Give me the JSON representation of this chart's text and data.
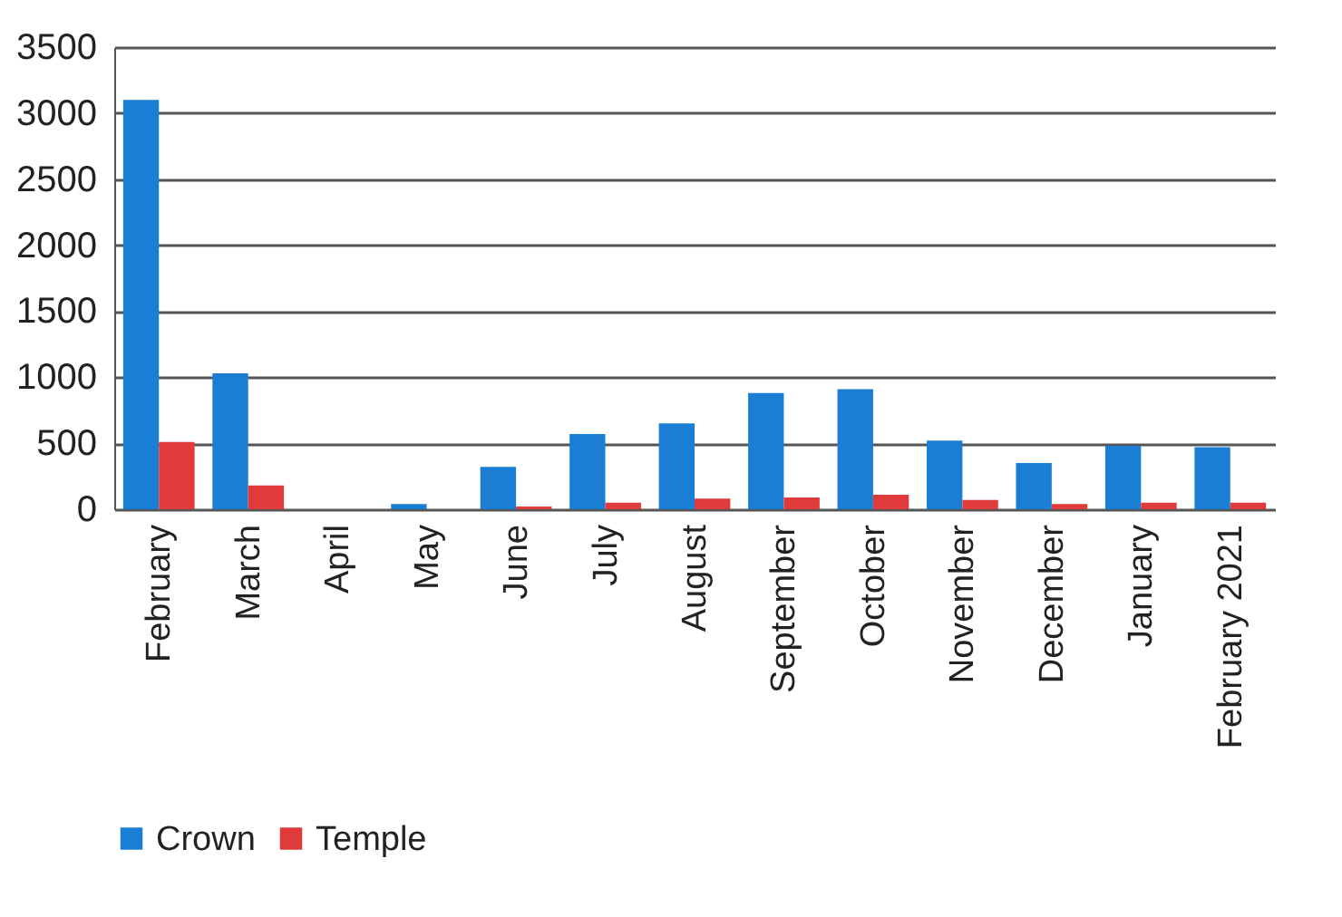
{
  "chart_data": {
    "type": "bar",
    "categories": [
      "February",
      "March",
      "April",
      "May",
      "June",
      "July",
      "August",
      "September",
      "October",
      "November",
      "December",
      "January",
      "February 2021"
    ],
    "series": [
      {
        "name": "Crown",
        "color": "#1a7fd4",
        "values": [
          3100,
          1030,
          0,
          40,
          320,
          570,
          650,
          880,
          910,
          520,
          350,
          480,
          470
        ]
      },
      {
        "name": "Temple",
        "color": "#e03a3a",
        "values": [
          510,
          180,
          0,
          0,
          20,
          50,
          80,
          90,
          110,
          70,
          40,
          50,
          50
        ]
      }
    ],
    "ylim": [
      0,
      3500
    ],
    "yticks": [
      0,
      500,
      1000,
      1500,
      2000,
      2500,
      3000,
      3500
    ],
    "grid": "y",
    "legend": "bottom"
  }
}
